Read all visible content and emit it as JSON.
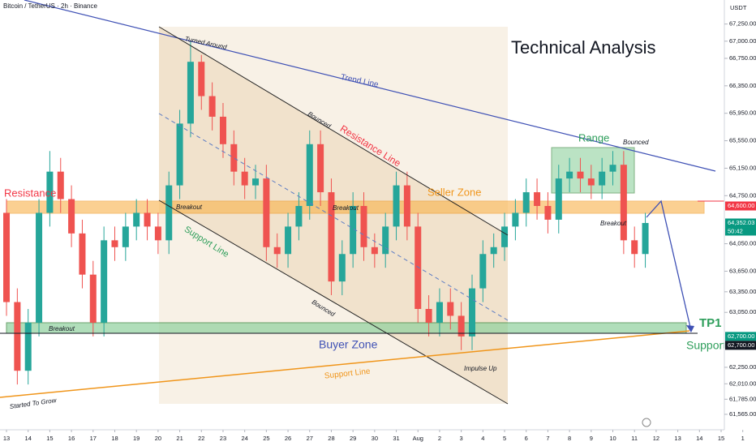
{
  "chart_data": {
    "type": "candlestick",
    "title": "Technical Analysis",
    "symbol": "Bitcoin / TetherUS · 2h · Binance",
    "y_axis_unit": "USDT",
    "up_color": "#26a69a",
    "down_color": "#ef5350",
    "xlim": [
      -0.3,
      33.15
    ],
    "ylim": [
      61340,
      67600
    ],
    "xticks": [
      {
        "value": 0,
        "label": "13"
      },
      {
        "value": 1,
        "label": "14"
      },
      {
        "value": 2,
        "label": "15"
      },
      {
        "value": 3,
        "label": "16"
      },
      {
        "value": 4,
        "label": "17"
      },
      {
        "value": 5,
        "label": "18"
      },
      {
        "value": 6,
        "label": "19"
      },
      {
        "value": 7,
        "label": "20"
      },
      {
        "value": 8,
        "label": "21"
      },
      {
        "value": 9,
        "label": "22"
      },
      {
        "value": 10,
        "label": "23"
      },
      {
        "value": 11,
        "label": "24"
      },
      {
        "value": 12,
        "label": "25"
      },
      {
        "value": 13,
        "label": "26"
      },
      {
        "value": 14,
        "label": "27"
      },
      {
        "value": 15,
        "label": "28"
      },
      {
        "value": 16,
        "label": "29"
      },
      {
        "value": 17,
        "label": "30"
      },
      {
        "value": 18,
        "label": "31"
      },
      {
        "value": 19,
        "label": "Aug"
      },
      {
        "value": 20,
        "label": "2"
      },
      {
        "value": 21,
        "label": "3"
      },
      {
        "value": 22,
        "label": "4"
      },
      {
        "value": 23,
        "label": "5"
      },
      {
        "value": 24,
        "label": "6"
      },
      {
        "value": 25,
        "label": "7"
      },
      {
        "value": 26,
        "label": "8"
      },
      {
        "value": 27,
        "label": "9"
      },
      {
        "value": 28,
        "label": "10"
      },
      {
        "value": 29,
        "label": "11"
      },
      {
        "value": 30,
        "label": "12"
      },
      {
        "value": 31,
        "label": "13"
      },
      {
        "value": 32,
        "label": "14"
      },
      {
        "value": 33,
        "label": "15"
      },
      {
        "value": 34,
        "label": "1"
      }
    ],
    "yticks": [
      {
        "value": 67250,
        "label": "67,250.00"
      },
      {
        "value": 67000,
        "label": "67,000.00"
      },
      {
        "value": 66750,
        "label": "66,750.00"
      },
      {
        "value": 66350,
        "label": "66,350.00"
      },
      {
        "value": 65950,
        "label": "65,950.00"
      },
      {
        "value": 65550,
        "label": "65,550.00"
      },
      {
        "value": 65150,
        "label": "65,150.00"
      },
      {
        "value": 64750,
        "label": "64,750.00"
      },
      {
        "value": 64050,
        "label": "64,050.00"
      },
      {
        "value": 63650,
        "label": "63,650.00"
      },
      {
        "value": 63350,
        "label": "63,350.00"
      },
      {
        "value": 63050,
        "label": "63,050.00"
      },
      {
        "value": 62250,
        "label": "62,250.00"
      },
      {
        "value": 62010,
        "label": "62,010.00"
      },
      {
        "value": 61785,
        "label": "61,785.00"
      },
      {
        "value": 61565,
        "label": "61,565.00"
      }
    ],
    "price_labels": [
      {
        "value": 64600,
        "label": "64,600.00",
        "color": "#f23645"
      },
      {
        "value": 64352.03,
        "label": "64,352.03",
        "color": "#089981"
      },
      {
        "value": 62700,
        "label": "62,700.00",
        "color": "#089981"
      },
      {
        "value": 62700,
        "label": "62,700.00",
        "color": "#131722"
      }
    ],
    "countdown": "50:42",
    "x": [
      0,
      0.5,
      1,
      1.5,
      2,
      2.5,
      3,
      3.5,
      4,
      4.5,
      5,
      5.5,
      6,
      6.5,
      7,
      7.5,
      8,
      8.5,
      9,
      9.5,
      10,
      10.5,
      11,
      11.5,
      12,
      12.5,
      13,
      13.5,
      14,
      14.5,
      15,
      15.5,
      16,
      16.5,
      17,
      17.5,
      18,
      18.5,
      19,
      19.5,
      20,
      20.5,
      21,
      21.5,
      22,
      22.5,
      23,
      23.5,
      24,
      24.5,
      25,
      25.5,
      26,
      26.5,
      27,
      27.5,
      28,
      28.5,
      29,
      29.5
    ],
    "open": [
      64500,
      63200,
      62200,
      62900,
      64500,
      65100,
      64700,
      64200,
      63600,
      62900,
      64100,
      64000,
      64300,
      64500,
      64300,
      64100,
      64900,
      65800,
      66700,
      66200,
      65900,
      65500,
      65100,
      64900,
      65000,
      64000,
      63900,
      64300,
      64600,
      65500,
      64800,
      63500,
      63900,
      64600,
      64000,
      63900,
      64300,
      64900,
      64300,
      63100,
      62900,
      63200,
      63000,
      62700,
      63400,
      63900,
      64000,
      64300,
      64500,
      64800,
      64600,
      64400,
      65000,
      65100,
      65000,
      64900,
      65100,
      65200,
      64100,
      63900
    ],
    "high": [
      64700,
      63400,
      63100,
      64700,
      65400,
      65300,
      64900,
      64400,
      63800,
      64300,
      64300,
      64500,
      64700,
      64700,
      64500,
      65100,
      66000,
      67000,
      66800,
      66400,
      66100,
      65700,
      65300,
      65200,
      65200,
      64200,
      64500,
      64800,
      65700,
      65700,
      65000,
      64100,
      64800,
      64800,
      64200,
      64500,
      65100,
      65100,
      64500,
      63300,
      63400,
      63400,
      63200,
      63600,
      64100,
      64200,
      64500,
      64700,
      65000,
      65000,
      64800,
      65200,
      65300,
      65300,
      65200,
      65300,
      65400,
      65400,
      64300,
      64500
    ],
    "low": [
      63000,
      62000,
      62000,
      62700,
      64300,
      64500,
      64000,
      63400,
      62700,
      62700,
      63800,
      63800,
      64100,
      64100,
      63900,
      63900,
      64700,
      65600,
      66000,
      65700,
      65300,
      64900,
      64700,
      64700,
      63800,
      63700,
      63700,
      64100,
      64400,
      64600,
      63300,
      63300,
      63700,
      63800,
      63700,
      63700,
      64100,
      64100,
      62900,
      62700,
      62700,
      62800,
      62500,
      62500,
      63200,
      63700,
      63800,
      64100,
      64300,
      64400,
      64200,
      64200,
      64800,
      64800,
      64700,
      64700,
      64900,
      63900,
      63700,
      63700
    ],
    "close": [
      63200,
      62200,
      62900,
      64500,
      65100,
      64700,
      64200,
      63600,
      62900,
      64100,
      64000,
      64300,
      64500,
      64300,
      64100,
      64900,
      65800,
      66700,
      66200,
      65900,
      65500,
      65100,
      64900,
      65000,
      64000,
      63900,
      64300,
      64600,
      65500,
      64800,
      63500,
      63900,
      64600,
      64000,
      63900,
      64300,
      64900,
      64300,
      63100,
      62900,
      63200,
      63000,
      62700,
      63400,
      63900,
      64000,
      64300,
      64500,
      64800,
      64600,
      64400,
      65000,
      65100,
      65000,
      64900,
      65100,
      65200,
      64100,
      63900,
      64352
    ],
    "annotations": [
      "Turned Around",
      "Trend Line",
      "Bounced",
      "Resistance Line",
      "Range",
      "Bounced",
      "Resistance",
      "Seller Zone",
      "Breakout",
      "Breakout",
      "Breakout",
      "Breakout",
      "Support Line",
      "Bounced",
      "Buyer Zone",
      "Support Line",
      "Impulse Up",
      "Started To Grow",
      "TP1",
      "Support"
    ]
  }
}
